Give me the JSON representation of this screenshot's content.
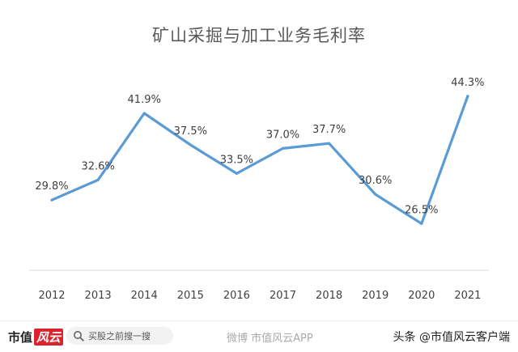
{
  "chart_data": {
    "type": "line",
    "title": "矿山采掘与加工业务毛利率",
    "categories": [
      "2012",
      "2013",
      "2014",
      "2015",
      "2016",
      "2017",
      "2018",
      "2019",
      "2020",
      "2021"
    ],
    "series": [
      {
        "values": [
          29.8,
          32.6,
          41.9,
          37.5,
          33.5,
          37.0,
          37.7,
          30.6,
          26.5,
          44.3
        ],
        "labels": [
          "29.8%",
          "32.6%",
          "41.9%",
          "37.5%",
          "33.5%",
          "37.0%",
          "37.7%",
          "30.6%",
          "26.5%",
          "44.3%"
        ]
      }
    ],
    "ylim": [
      20,
      48
    ],
    "grid": false,
    "legend": "none",
    "line_color": "#5b9bd5"
  },
  "footer": {
    "logo_text_a": "市值",
    "logo_text_b": "风云",
    "search_icon": "search-icon",
    "search_placeholder": "买股之前搜一搜",
    "source_label": "微博 市值风云APP",
    "channel_label": "头条 @市值风云客户端"
  }
}
